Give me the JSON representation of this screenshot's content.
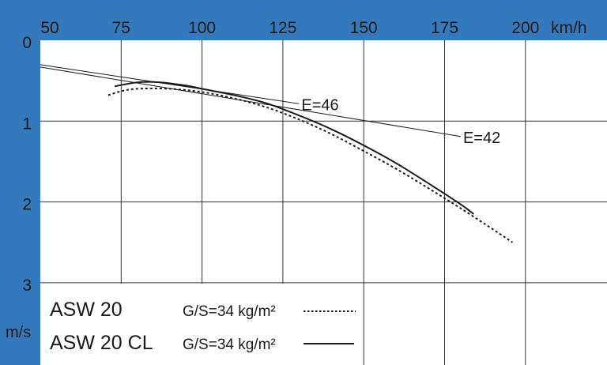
{
  "chart_data": {
    "type": "line",
    "title": "",
    "xlabel": "km/h",
    "ylabel": "m/s",
    "xlim": [
      50,
      225
    ],
    "ylim": [
      0,
      4
    ],
    "y_inverted": true,
    "x_axis_position": "top",
    "grid": true,
    "x_ticks": [
      "50",
      "75",
      "100",
      "125",
      "150",
      "175",
      "200"
    ],
    "y_ticks": [
      "0",
      "1",
      "2",
      "3"
    ],
    "colors": {
      "frame": "#3579bd",
      "plot": "#ffffff",
      "lines": "#1a1a1a"
    },
    "series": [
      {
        "name": "ASW 20",
        "legend_detail": "G/S=34 kg/m²",
        "style": "dotted",
        "x": [
          71,
          75,
          80,
          90,
          100,
          110,
          120,
          130,
          140,
          150,
          160,
          170,
          180,
          190,
          196
        ],
        "y": [
          0.68,
          0.63,
          0.6,
          0.6,
          0.64,
          0.72,
          0.83,
          0.98,
          1.16,
          1.37,
          1.59,
          1.83,
          2.08,
          2.34,
          2.5
        ]
      },
      {
        "name": "ASW 20 CL",
        "legend_detail": "G/S=34 kg/m²",
        "style": "solid",
        "x": [
          73,
          80,
          87,
          95,
          100,
          110,
          120,
          130,
          140,
          150,
          160,
          170,
          180,
          184
        ],
        "y": [
          0.57,
          0.52,
          0.52,
          0.56,
          0.6,
          0.68,
          0.78,
          0.93,
          1.1,
          1.3,
          1.52,
          1.77,
          2.03,
          2.15
        ]
      }
    ],
    "glide_lines": [
      {
        "label": "E=46",
        "ratio": 46,
        "x_end": 130
      },
      {
        "label": "E=42",
        "ratio": 42,
        "x_end": 180
      }
    ],
    "legend_placement": "bottom-left"
  }
}
